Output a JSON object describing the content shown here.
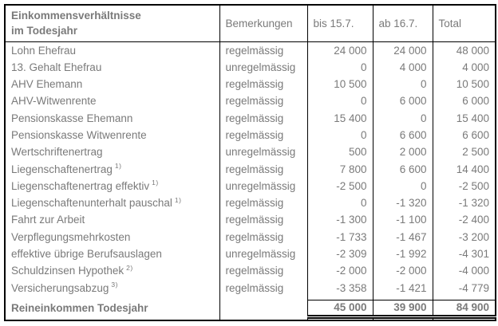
{
  "colors": {
    "text": "#7a7a7a",
    "border": "#000000",
    "background": "#ffffff"
  },
  "table": {
    "header": {
      "title_line1": "Einkommensverhältnisse",
      "title_line2": "im Todesjahr",
      "remarks": "Bemerkungen",
      "until": "bis 15.7.",
      "from": "ab 16.7.",
      "total": "Total"
    },
    "rows": [
      {
        "label": "Lohn Ehefrau",
        "footnote": "",
        "remark": "regelmässig",
        "until": "24 000",
        "from": "24 000",
        "total": "48 000"
      },
      {
        "label": "13. Gehalt Ehefrau",
        "footnote": "",
        "remark": "unregelmässig",
        "until": "0",
        "from": "4 000",
        "total": "4 000"
      },
      {
        "label": "AHV Ehemann",
        "footnote": "",
        "remark": "regelmässig",
        "until": "10 500",
        "from": "0",
        "total": "10 500"
      },
      {
        "label": "AHV-Witwenrente",
        "footnote": "",
        "remark": "regelmässig",
        "until": "0",
        "from": "6 000",
        "total": "6 000"
      },
      {
        "label": "Pensionskasse Ehemann",
        "footnote": "",
        "remark": "regelmässig",
        "until": "15 400",
        "from": "0",
        "total": "15 400"
      },
      {
        "label": "Pensionskasse Witwenrente",
        "footnote": "",
        "remark": "regelmässig",
        "until": "0",
        "from": "6 600",
        "total": "6 600"
      },
      {
        "label": "Wertschriftenertrag",
        "footnote": "",
        "remark": "unregelmässig",
        "until": "500",
        "from": "2 000",
        "total": "2 500"
      },
      {
        "label": "Liegenschaftenertrag",
        "footnote": "1)",
        "remark": "regelmässig",
        "until": "7 800",
        "from": "6 600",
        "total": "14 400"
      },
      {
        "label": "Liegenschaftenertrag effektiv",
        "footnote": "1)",
        "remark": "unregelmässig",
        "until": "-2 500",
        "from": "0",
        "total": "-2 500"
      },
      {
        "label": "Liegenschaftenunterhalt pauschal",
        "footnote": "1)",
        "remark": "regelmässig",
        "until": "0",
        "from": "-1 320",
        "total": "-1 320"
      },
      {
        "label": "Fahrt zur Arbeit",
        "footnote": "",
        "remark": "regelmässig",
        "until": "-1 300",
        "from": "-1 100",
        "total": "-2 400"
      },
      {
        "label": "Verpflegungsmehrkosten",
        "footnote": "",
        "remark": "regelmässig",
        "until": "-1 733",
        "from": "-1 467",
        "total": "-3 200"
      },
      {
        "label": "effektive übrige Berufsauslagen",
        "footnote": "",
        "remark": "unregelmässig",
        "until": "-2 309",
        "from": "-1 992",
        "total": "-4 301"
      },
      {
        "label": "Schuldzinsen Hypothek",
        "footnote": "2)",
        "remark": "regelmässig",
        "until": "-2 000",
        "from": "-2 000",
        "total": "-4 000"
      },
      {
        "label": "Versicherungsabzug",
        "footnote": "3)",
        "remark": "regelmässig",
        "until": "-3 358",
        "from": "-1 421",
        "total": "-4 779"
      }
    ],
    "footer": {
      "label": "Reineinkommen Todesjahr",
      "remark": "",
      "until": "45 000",
      "from": "39 900",
      "total": "84 900"
    }
  }
}
